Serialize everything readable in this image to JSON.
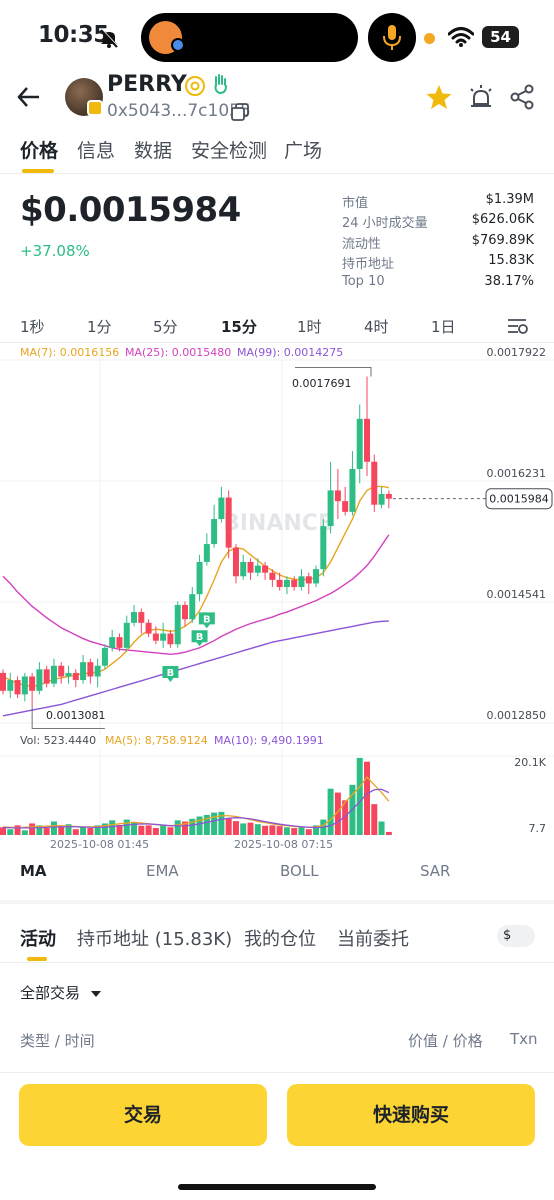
{
  "status_bar": {
    "time": "10:35",
    "battery": "54"
  },
  "header": {
    "token_name": "PERRY",
    "address": "0x5043...7c1055"
  },
  "tabs": [
    {
      "label": "价格",
      "active": true
    },
    {
      "label": "信息"
    },
    {
      "label": "数据"
    },
    {
      "label": "安全检测"
    },
    {
      "label": "广场"
    }
  ],
  "price": {
    "value": "$0.0015984",
    "change": "+37.08%"
  },
  "stats": [
    {
      "label": "市值",
      "value": "$1.39M"
    },
    {
      "label": "24 小时成交量",
      "value": "$626.06K"
    },
    {
      "label": "流动性",
      "value": "$769.89K"
    },
    {
      "label": "持币地址",
      "value": "15.83K"
    },
    {
      "label": "Top 10",
      "value": "38.17%"
    }
  ],
  "intervals": [
    {
      "label": "1秒"
    },
    {
      "label": "1分"
    },
    {
      "label": "5分"
    },
    {
      "label": "15分",
      "active": true
    },
    {
      "label": "1时"
    },
    {
      "label": "4时"
    },
    {
      "label": "1日"
    }
  ],
  "ma_legend": {
    "ma7": "MA(7): 0.0016156",
    "ma25": "MA(25): 0.0015480",
    "ma99": "MA(99): 0.0014275"
  },
  "chart_data": {
    "type": "candlestick",
    "interval": "15分",
    "price_axis": [
      "0.0017922",
      "0.0016231",
      "0.0014541",
      "0.0012850"
    ],
    "ylim": [
      0.001285,
      0.0017922
    ],
    "high_label": "0.0017691",
    "low_label": "0.0013081",
    "current_price": "0.0015984",
    "time_labels": [
      "2025-10-08 01:45",
      "2025-10-08 07:15"
    ],
    "watermark": "BINANCE",
    "buy_markers": [
      "B",
      "B",
      "B"
    ],
    "candles": [
      [
        0.001355,
        0.00133,
        0.00136,
        0.001325
      ],
      [
        0.00133,
        0.001345,
        0.001355,
        0.00132
      ],
      [
        0.001345,
        0.001325,
        0.00135,
        0.00132
      ],
      [
        0.001325,
        0.00135,
        0.001355,
        0.001315
      ],
      [
        0.00135,
        0.00133,
        0.001355,
        0.0013081
      ],
      [
        0.00133,
        0.00136,
        0.00137,
        0.001325
      ],
      [
        0.00136,
        0.00134,
        0.001365,
        0.001335
      ],
      [
        0.00134,
        0.001365,
        0.001375,
        0.001335
      ],
      [
        0.001365,
        0.00135,
        0.00137,
        0.00134
      ],
      [
        0.00135,
        0.001355,
        0.001365,
        0.00134
      ],
      [
        0.001355,
        0.001345,
        0.00136,
        0.001335
      ],
      [
        0.001345,
        0.00137,
        0.00138,
        0.00134
      ],
      [
        0.00137,
        0.00135,
        0.001375,
        0.00134
      ],
      [
        0.00135,
        0.001365,
        0.001375,
        0.001335
      ],
      [
        0.001365,
        0.00139,
        0.001395,
        0.00136
      ],
      [
        0.00139,
        0.001405,
        0.001415,
        0.001385
      ],
      [
        0.001405,
        0.00139,
        0.00141,
        0.001385
      ],
      [
        0.00139,
        0.001425,
        0.001435,
        0.001385
      ],
      [
        0.001425,
        0.00144,
        0.00145,
        0.00142
      ],
      [
        0.00144,
        0.001425,
        0.001445,
        0.00141
      ],
      [
        0.001425,
        0.00141,
        0.00143,
        0.001405
      ],
      [
        0.00141,
        0.0014,
        0.00142,
        0.001395
      ],
      [
        0.0014,
        0.00141,
        0.001425,
        0.00139
      ],
      [
        0.00141,
        0.001395,
        0.001415,
        0.00139
      ],
      [
        0.001395,
        0.00145,
        0.001455,
        0.00139
      ],
      [
        0.00145,
        0.00143,
        0.001455,
        0.00142
      ],
      [
        0.00143,
        0.001465,
        0.001475,
        0.001425
      ],
      [
        0.001465,
        0.00151,
        0.00152,
        0.001455
      ],
      [
        0.00151,
        0.001535,
        0.00155,
        0.001505
      ],
      [
        0.001535,
        0.00157,
        0.00159,
        0.00153
      ],
      [
        0.00157,
        0.0016,
        0.001615,
        0.001565
      ],
      [
        0.0016,
        0.00153,
        0.00161,
        0.001515
      ],
      [
        0.00153,
        0.00149,
        0.001535,
        0.00148
      ],
      [
        0.00149,
        0.00151,
        0.00152,
        0.001485
      ],
      [
        0.00151,
        0.001495,
        0.001515,
        0.001485
      ],
      [
        0.001495,
        0.001505,
        0.001515,
        0.00149
      ],
      [
        0.001505,
        0.001495,
        0.00151,
        0.001485
      ],
      [
        0.001495,
        0.001485,
        0.0015,
        0.001475
      ],
      [
        0.001485,
        0.001475,
        0.001495,
        0.00147
      ],
      [
        0.001475,
        0.001485,
        0.00149,
        0.001465
      ],
      [
        0.001485,
        0.001475,
        0.00149,
        0.00147
      ],
      [
        0.001475,
        0.00149,
        0.0015,
        0.00147
      ],
      [
        0.00149,
        0.00148,
        0.001495,
        0.001465
      ],
      [
        0.00148,
        0.0015,
        0.001505,
        0.001475
      ],
      [
        0.0015,
        0.00156,
        0.00157,
        0.00149
      ],
      [
        0.00156,
        0.00161,
        0.00165,
        0.00155
      ],
      [
        0.00161,
        0.001595,
        0.00164,
        0.00157
      ],
      [
        0.001595,
        0.00158,
        0.001615,
        0.001575
      ],
      [
        0.00158,
        0.00164,
        0.001665,
        0.001575
      ],
      [
        0.00164,
        0.00171,
        0.00173,
        0.00162
      ],
      [
        0.00171,
        0.00165,
        0.0017691,
        0.00163
      ],
      [
        0.00165,
        0.00159,
        0.00166,
        0.00158
      ],
      [
        0.00159,
        0.001605,
        0.001615,
        0.001585
      ],
      [
        0.001605,
        0.0015984,
        0.00161,
        0.001585
      ]
    ],
    "ma7_line": [
      0.00135,
      0.001345,
      0.00134,
      0.001338,
      0.001336,
      0.001338,
      0.001342,
      0.001346,
      0.001348,
      0.00135,
      0.001352,
      0.001354,
      0.001355,
      0.001356,
      0.00136,
      0.001368,
      0.001376,
      0.001386,
      0.001398,
      0.001408,
      0.001414,
      0.001416,
      0.001415,
      0.001413,
      0.001415,
      0.00142,
      0.001428,
      0.001442,
      0.001462,
      0.001485,
      0.00151,
      0.001525,
      0.00153,
      0.001528,
      0.00152,
      0.001512,
      0.001504,
      0.001498,
      0.001492,
      0.001488,
      0.001486,
      0.001485,
      0.001486,
      0.001488,
      0.001495,
      0.00151,
      0.00153,
      0.00155,
      0.00157,
      0.001595,
      0.00161,
      0.0016156,
      0.0016156,
      0.001614
    ],
    "ma25_line": [
      0.00149,
      0.00148,
      0.001468,
      0.001458,
      0.001448,
      0.00144,
      0.001432,
      0.001425,
      0.001418,
      0.001413,
      0.001408,
      0.001403,
      0.001399,
      0.001396,
      0.001393,
      0.00139,
      0.001388,
      0.001387,
      0.001386,
      0.001385,
      0.001384,
      0.001383,
      0.001382,
      0.001381,
      0.001382,
      0.001384,
      0.001387,
      0.00139,
      0.001395,
      0.0014,
      0.001406,
      0.001411,
      0.001416,
      0.00142,
      0.001424,
      0.001427,
      0.00143,
      0.001433,
      0.001437,
      0.00144,
      0.001444,
      0.001448,
      0.001452,
      0.001456,
      0.001461,
      0.001466,
      0.001472,
      0.001479,
      0.001486,
      0.001495,
      0.001505,
      0.001518,
      0.001533,
      0.001548
    ],
    "ma99_line": [
      0.001295,
      0.001297,
      0.001299,
      0.001301,
      0.001303,
      0.001305,
      0.001307,
      0.001309,
      0.001311,
      0.001314,
      0.001317,
      0.00132,
      0.001323,
      0.001326,
      0.001329,
      0.001332,
      0.001335,
      0.001338,
      0.001341,
      0.001344,
      0.001347,
      0.00135,
      0.001353,
      0.001356,
      0.001359,
      0.001362,
      0.001365,
      0.001368,
      0.001371,
      0.001374,
      0.001377,
      0.00138,
      0.001383,
      0.001386,
      0.001389,
      0.001392,
      0.001395,
      0.001398,
      0.0014,
      0.001402,
      0.001404,
      0.001406,
      0.001408,
      0.00141,
      0.001412,
      0.001414,
      0.001416,
      0.001418,
      0.00142,
      0.001422,
      0.001424,
      0.001426,
      0.001427,
      0.0014275
    ]
  },
  "volume": {
    "legend_vol": "Vol: 523.4440",
    "legend_ma5": "MA(5): 8,758.9124",
    "legend_ma10": "MA(10): 9,490.1991",
    "axis_top": "20.1K",
    "axis_bottom": "7.7",
    "bars": [
      2000,
      1500,
      2500,
      1200,
      3000,
      2500,
      1800,
      3500,
      2200,
      2800,
      1500,
      2000,
      1800,
      2500,
      3000,
      3800,
      2600,
      4000,
      3200,
      2400,
      2500,
      1800,
      2600,
      2000,
      3800,
      3500,
      4200,
      4800,
      5200,
      5800,
      6000,
      4400,
      3600,
      3000,
      3200,
      2800,
      2400,
      2500,
      2300,
      2000,
      1800,
      2000,
      1500,
      2500,
      4000,
      12000,
      11000,
      9000,
      13000,
      20000,
      19000,
      8000,
      3500,
      800
    ],
    "ma5_line": [
      2100,
      2000,
      1900,
      2000,
      2100,
      2200,
      2300,
      2400,
      2400,
      2300,
      2200,
      2100,
      2100,
      2200,
      2400,
      2700,
      2900,
      3100,
      3300,
      3100,
      2900,
      2700,
      2500,
      2400,
      2600,
      2900,
      3300,
      3800,
      4200,
      4700,
      5000,
      5000,
      4800,
      4400,
      4000,
      3500,
      3200,
      2900,
      2600,
      2400,
      2200,
      2100,
      2000,
      2100,
      2500,
      4000,
      6000,
      8500,
      10500,
      12500,
      15000,
      13000,
      11000,
      8758
    ]
  },
  "indicators": [
    {
      "label": "MA",
      "active": true
    },
    {
      "label": "EMA"
    },
    {
      "label": "BOLL"
    },
    {
      "label": "SAR"
    }
  ],
  "activity_tabs": [
    {
      "label": "活动",
      "active": true
    },
    {
      "label": "持币地址 (15.83K)"
    },
    {
      "label": "我的仓位"
    },
    {
      "label": "当前委托"
    }
  ],
  "currency_toggle": "$",
  "filter_label": "全部交易",
  "list_headers": {
    "type_time": "类型 / 时间",
    "value_price": "价值 / 价格",
    "txn": "Txn"
  },
  "buttons": {
    "trade": "交易",
    "quick_buy": "快速购买"
  },
  "colors": {
    "accent": "#f0b90b",
    "up": "#2ebd85",
    "down": "#f6465d",
    "button": "#fcd535",
    "ma7": "#e8a520",
    "ma25": "#d43fc0",
    "ma99": "#8b55d6"
  }
}
